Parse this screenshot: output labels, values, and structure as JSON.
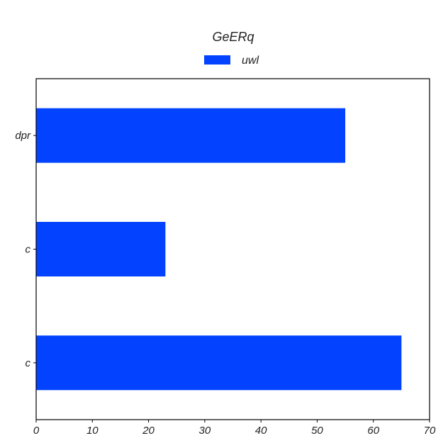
{
  "chart_data": {
    "type": "bar",
    "orientation": "horizontal",
    "title": "GeERq",
    "categories": [
      "dpr",
      "c",
      "c"
    ],
    "series": [
      {
        "name": "uwl",
        "values": [
          55,
          23,
          65
        ],
        "color": "#0343ff"
      }
    ],
    "xlim": [
      0,
      70
    ],
    "x_ticks": [
      0,
      10,
      20,
      30,
      40,
      50,
      60,
      70
    ],
    "grid": false,
    "legend": "top-center"
  }
}
